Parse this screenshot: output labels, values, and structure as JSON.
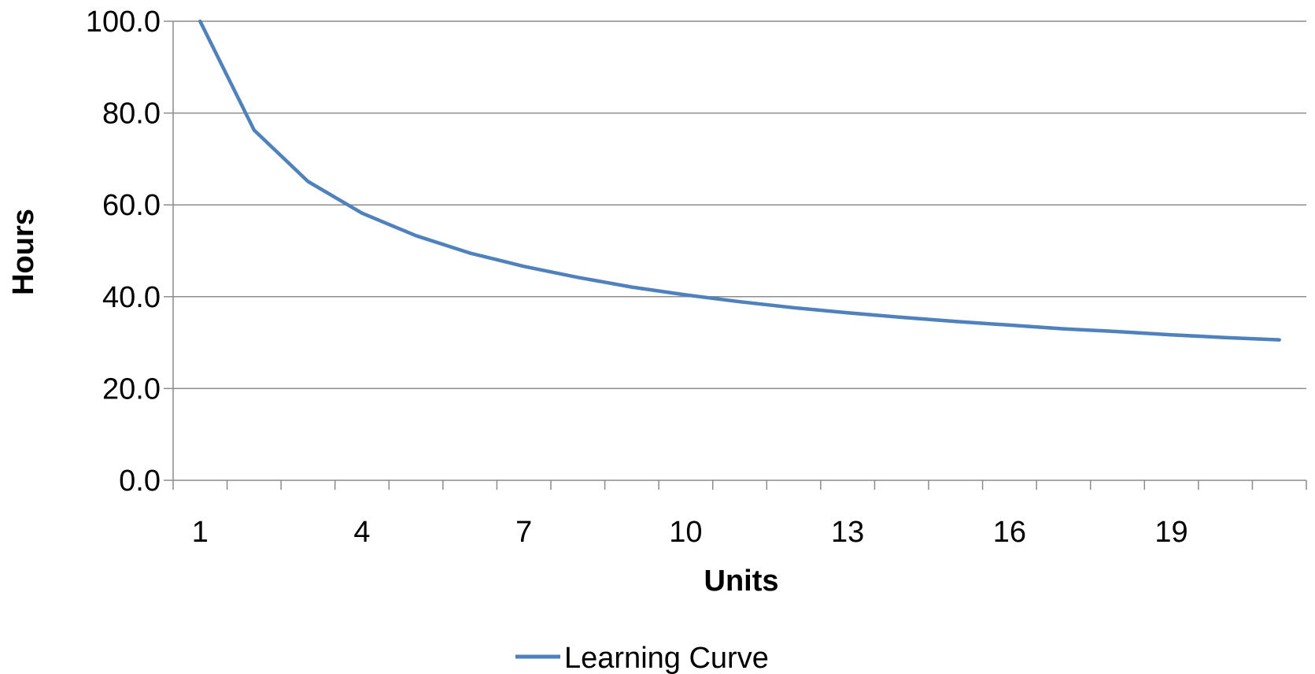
{
  "chart_data": {
    "type": "line",
    "xlabel": "Units",
    "ylabel": "Hours",
    "ylim": [
      0,
      100
    ],
    "y_ticks": [
      "0.0",
      "20.0",
      "40.0",
      "60.0",
      "80.0",
      "100.0"
    ],
    "x_tick_labels": [
      "1",
      "4",
      "7",
      "10",
      "13",
      "16",
      "19"
    ],
    "grid": true,
    "legend_position": "bottom",
    "series": [
      {
        "name": "Learning Curve",
        "color": "#4F81BD",
        "x": [
          1,
          2,
          3,
          4,
          5,
          6,
          7,
          8,
          9,
          10,
          11,
          12,
          13,
          14,
          15,
          16,
          17,
          18,
          19,
          20,
          21
        ],
        "values": [
          100.0,
          76.3,
          65.1,
          58.2,
          53.3,
          49.5,
          46.6,
          44.2,
          42.1,
          40.4,
          38.9,
          37.6,
          36.5,
          35.5,
          34.6,
          33.8,
          33.0,
          32.4,
          31.7,
          31.1,
          30.6
        ]
      }
    ]
  }
}
